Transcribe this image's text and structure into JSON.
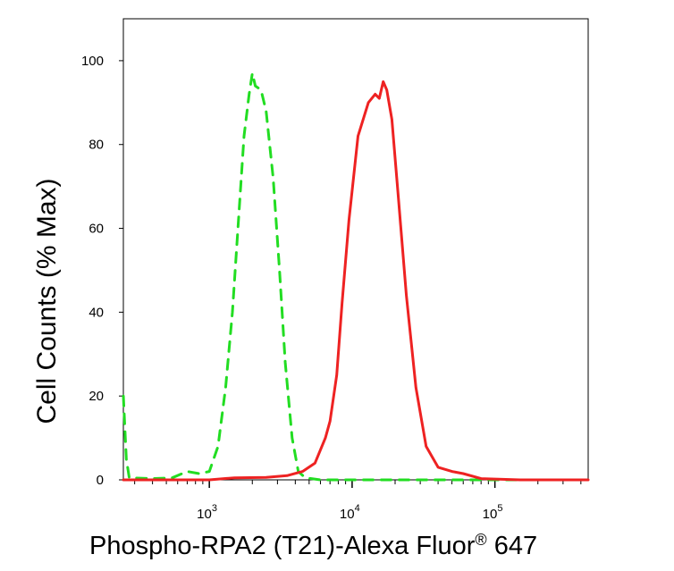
{
  "chart_data": {
    "type": "line",
    "title": "",
    "xlabel": "Phospho-RPA2 (T21)-Alexa Fluor",
    "xlabel_superscript": "®",
    "xlabel_suffix": " 647",
    "ylabel": "Cell Counts (% Max)",
    "xscale": "log",
    "xlim": [
      250,
      450000
    ],
    "ylim": [
      0,
      110
    ],
    "x_ticks": [
      {
        "base": "10",
        "exp": "3",
        "value": 1000
      },
      {
        "base": "10",
        "exp": "4",
        "value": 10000
      },
      {
        "base": "10",
        "exp": "5",
        "value": 100000
      }
    ],
    "y_ticks": [
      0,
      20,
      40,
      60,
      80,
      100
    ],
    "grid": false,
    "legend": "none",
    "series": [
      {
        "color": "#22dd22",
        "style": "dashed",
        "points": [
          [
            250,
            20
          ],
          [
            262,
            5
          ],
          [
            275,
            0.5
          ],
          [
            400,
            0.3
          ],
          [
            550,
            0.5
          ],
          [
            700,
            2
          ],
          [
            850,
            1.5
          ],
          [
            1000,
            2
          ],
          [
            1150,
            8
          ],
          [
            1300,
            22
          ],
          [
            1450,
            40
          ],
          [
            1600,
            62
          ],
          [
            1750,
            82
          ],
          [
            1900,
            92
          ],
          [
            2000,
            97
          ],
          [
            2100,
            94
          ],
          [
            2300,
            93
          ],
          [
            2500,
            88
          ],
          [
            2800,
            72
          ],
          [
            3100,
            50
          ],
          [
            3400,
            28
          ],
          [
            3800,
            10
          ],
          [
            4200,
            2
          ],
          [
            4700,
            0.5
          ],
          [
            6000,
            0
          ],
          [
            20000,
            0
          ],
          [
            100000,
            0
          ],
          [
            450000,
            0
          ]
        ]
      },
      {
        "color": "#ee2222",
        "style": "solid",
        "points": [
          [
            250,
            0
          ],
          [
            1000,
            0
          ],
          [
            1500,
            0.5
          ],
          [
            2500,
            0.6
          ],
          [
            3500,
            1
          ],
          [
            4500,
            2
          ],
          [
            5500,
            4
          ],
          [
            6500,
            10
          ],
          [
            7000,
            14
          ],
          [
            7800,
            25
          ],
          [
            8500,
            42
          ],
          [
            9500,
            62
          ],
          [
            11000,
            82
          ],
          [
            13000,
            90
          ],
          [
            14500,
            92
          ],
          [
            15500,
            91
          ],
          [
            16500,
            95
          ],
          [
            17500,
            93
          ],
          [
            19000,
            86
          ],
          [
            21000,
            68
          ],
          [
            24000,
            44
          ],
          [
            28000,
            22
          ],
          [
            33000,
            8
          ],
          [
            40000,
            3
          ],
          [
            50000,
            2
          ],
          [
            60000,
            1.5
          ],
          [
            80000,
            0.3
          ],
          [
            150000,
            0
          ],
          [
            450000,
            0
          ]
        ]
      }
    ]
  }
}
